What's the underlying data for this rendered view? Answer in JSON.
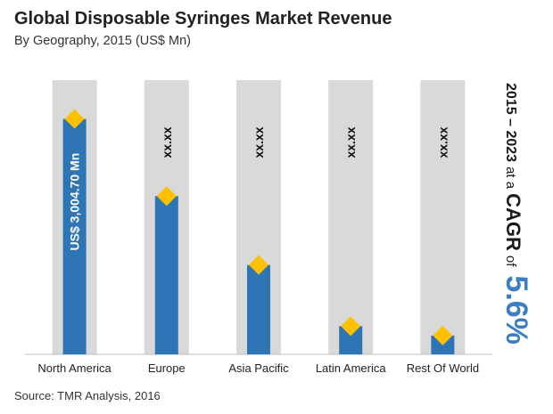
{
  "colors": {
    "bar": "#2e75b6",
    "column_background": "#d9d9d9",
    "marker": "#ffc000",
    "axis": "#bfbfbf",
    "cagr_value": "#3b7ec2"
  },
  "chart_data": {
    "type": "bar",
    "title": "Global Disposable Syringes Market Revenue",
    "subtitle": "By Geography, 2015 (US$ Mn)",
    "categories": [
      "North America",
      "Europe",
      "Asia Pacific",
      "Latin America",
      "Rest Of World"
    ],
    "values": [
      3004.7,
      2020,
      1140,
      360,
      240
    ],
    "data_labels": [
      "US$ 3,004.70 Mn",
      "xx.xx",
      "xx.xx",
      "xx.xx",
      "xx.xx"
    ],
    "ylim": [
      0,
      3500
    ],
    "grid": false,
    "legend": "none",
    "source": "Source: TMR Analysis, 2016"
  },
  "cagr": {
    "period": "2015 – 2023",
    "at_a": "at a",
    "label": "CAGR",
    "of": "of",
    "value": "5.6%"
  }
}
